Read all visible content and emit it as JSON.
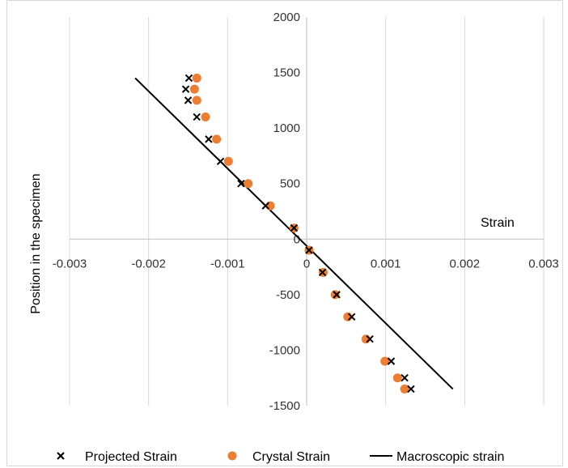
{
  "chart_data": {
    "type": "scatter",
    "title": "",
    "xlabel": "Strain",
    "ylabel": "Position in the specimen",
    "xlim": [
      -0.003,
      0.003
    ],
    "ylim": [
      -1500,
      2000
    ],
    "x_ticks": [
      -0.003,
      -0.002,
      -0.001,
      0,
      0.001,
      0.002,
      0.003
    ],
    "x_tick_labels": [
      "-0.003",
      "-0.002",
      "-0.001",
      "0",
      "0.001",
      "0.002",
      "0.003"
    ],
    "y_ticks": [
      -1500,
      -1000,
      -500,
      0,
      500,
      1000,
      1500,
      2000
    ],
    "y_tick_labels": [
      "-1500",
      "-1000",
      "-500",
      "0",
      "500",
      "1000",
      "1500",
      "2000"
    ],
    "grid": "vertical",
    "legend_position": "bottom",
    "series": [
      {
        "name": "Projected Strain",
        "marker": "x",
        "color": "#000000",
        "points": [
          [
            -0.00149,
            1450
          ],
          [
            -0.00153,
            1350
          ],
          [
            -0.0015,
            1250
          ],
          [
            -0.00139,
            1100
          ],
          [
            -0.00124,
            900
          ],
          [
            -0.00109,
            700
          ],
          [
            -0.00083,
            500
          ],
          [
            -0.00052,
            300
          ],
          [
            -0.00016,
            100
          ],
          [
            3e-05,
            -100
          ],
          [
            0.0002,
            -300
          ],
          [
            0.00038,
            -500
          ],
          [
            0.00057,
            -700
          ],
          [
            0.0008,
            -900
          ],
          [
            0.00107,
            -1100
          ],
          [
            0.00124,
            -1250
          ],
          [
            0.00132,
            -1350
          ]
        ]
      },
      {
        "name": "Crystal Strain",
        "marker": "circle",
        "color": "#ed7d31",
        "points": [
          [
            -0.00139,
            1450
          ],
          [
            -0.00142,
            1350
          ],
          [
            -0.00139,
            1250
          ],
          [
            -0.00128,
            1100
          ],
          [
            -0.00114,
            900
          ],
          [
            -0.00099,
            700
          ],
          [
            -0.00074,
            500
          ],
          [
            -0.00046,
            300
          ],
          [
            -0.00016,
            100
          ],
          [
            3e-05,
            -100
          ],
          [
            0.00021,
            -300
          ],
          [
            0.00036,
            -500
          ],
          [
            0.00052,
            -700
          ],
          [
            0.00075,
            -900
          ],
          [
            0.00099,
            -1100
          ],
          [
            0.00115,
            -1250
          ],
          [
            0.00124,
            -1350
          ]
        ]
      },
      {
        "name": "Macroscopic strain",
        "marker": "line",
        "color": "#000000",
        "points": [
          [
            -0.00217,
            1450
          ],
          [
            0.00185,
            -1350
          ]
        ]
      }
    ]
  }
}
